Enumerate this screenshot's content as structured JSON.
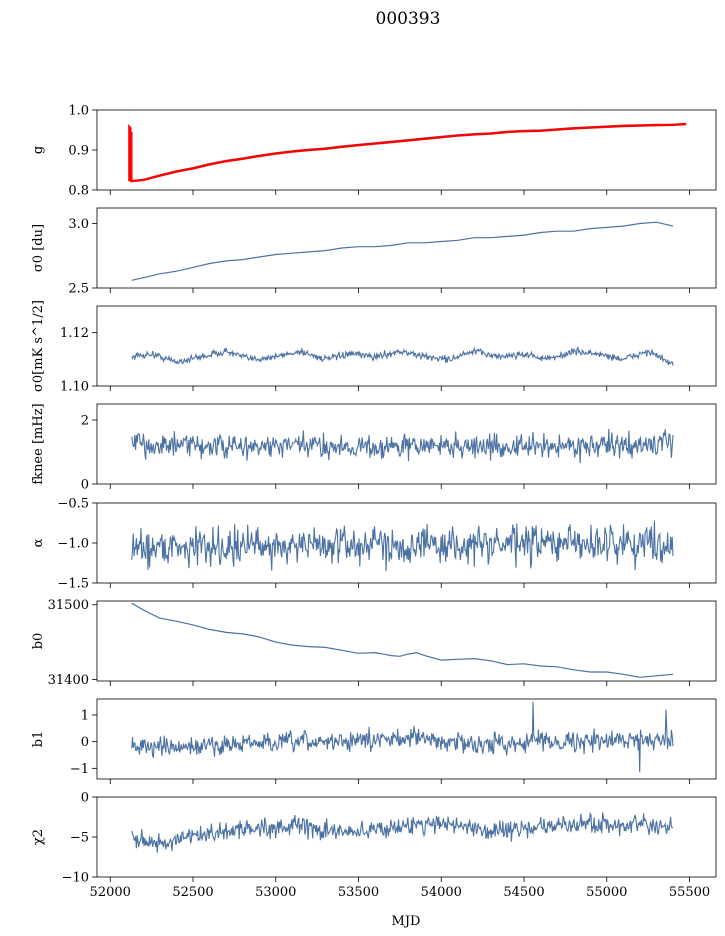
{
  "title": "000393",
  "chart_data": [
    {
      "id": "g",
      "type": "line",
      "ylabel": "g",
      "ylim": [
        0.8,
        1.0
      ],
      "yticks": [
        {
          "v": 0.8,
          "label": "0.8"
        },
        {
          "v": 0.9,
          "label": "0.9"
        },
        {
          "v": 1.0,
          "label": "1.0"
        }
      ],
      "series": [
        {
          "color": "#4c72a4",
          "kind": "smooth",
          "points": [
            [
              52120,
              0.823
            ],
            [
              52200,
              0.826
            ],
            [
              52300,
              0.838
            ],
            [
              52400,
              0.848
            ],
            [
              52500,
              0.856
            ],
            [
              52600,
              0.866
            ],
            [
              52700,
              0.874
            ],
            [
              52800,
              0.88
            ],
            [
              52900,
              0.887
            ],
            [
              53000,
              0.893
            ],
            [
              53100,
              0.898
            ],
            [
              53200,
              0.902
            ],
            [
              53300,
              0.905
            ],
            [
              53400,
              0.91
            ],
            [
              53500,
              0.914
            ],
            [
              53600,
              0.918
            ],
            [
              53700,
              0.922
            ],
            [
              53800,
              0.926
            ],
            [
              53900,
              0.93
            ],
            [
              54000,
              0.934
            ],
            [
              54100,
              0.938
            ],
            [
              54200,
              0.941
            ],
            [
              54300,
              0.943
            ],
            [
              54400,
              0.947
            ],
            [
              54500,
              0.949
            ],
            [
              54600,
              0.95
            ],
            [
              54700,
              0.953
            ],
            [
              54800,
              0.956
            ],
            [
              54900,
              0.958
            ],
            [
              55000,
              0.96
            ],
            [
              55100,
              0.962
            ],
            [
              55200,
              0.963
            ],
            [
              55300,
              0.964
            ],
            [
              55400,
              0.963
            ]
          ]
        },
        {
          "color": "#ff0000",
          "kind": "smooth-thick",
          "points": [
            [
              52120,
              0.822
            ],
            [
              52200,
              0.825
            ],
            [
              52300,
              0.836
            ],
            [
              52400,
              0.846
            ],
            [
              52500,
              0.854
            ],
            [
              52600,
              0.864
            ],
            [
              52700,
              0.872
            ],
            [
              52800,
              0.878
            ],
            [
              52900,
              0.885
            ],
            [
              53000,
              0.891
            ],
            [
              53100,
              0.896
            ],
            [
              53200,
              0.9
            ],
            [
              53300,
              0.903
            ],
            [
              53400,
              0.908
            ],
            [
              53500,
              0.912
            ],
            [
              53600,
              0.916
            ],
            [
              53700,
              0.92
            ],
            [
              53800,
              0.924
            ],
            [
              53900,
              0.928
            ],
            [
              54000,
              0.932
            ],
            [
              54100,
              0.936
            ],
            [
              54200,
              0.939
            ],
            [
              54300,
              0.941
            ],
            [
              54400,
              0.945
            ],
            [
              54500,
              0.947
            ],
            [
              54600,
              0.948
            ],
            [
              54700,
              0.951
            ],
            [
              54800,
              0.954
            ],
            [
              54900,
              0.956
            ],
            [
              55000,
              0.958
            ],
            [
              55100,
              0.96
            ],
            [
              55200,
              0.961
            ],
            [
              55300,
              0.962
            ],
            [
              55400,
              0.963
            ],
            [
              55480,
              0.965
            ]
          ]
        },
        {
          "color": "#ff0000",
          "kind": "spike",
          "points": [
            [
              52115,
              0.822
            ],
            [
              52115,
              0.958
            ],
            [
              52122,
              0.955
            ],
            [
              52122,
              0.822
            ],
            [
              52128,
              0.945
            ],
            [
              52128,
              0.822
            ]
          ]
        }
      ]
    },
    {
      "id": "sigma0_du",
      "type": "line",
      "ylabel": "σ0 [du]",
      "ylim": [
        2.5,
        3.12
      ],
      "yticks": [
        {
          "v": 2.5,
          "label": "2.5"
        },
        {
          "v": 3.0,
          "label": "3.0"
        }
      ],
      "series": [
        {
          "color": "#4c72a4",
          "kind": "smooth",
          "points": [
            [
              52130,
              2.56
            ],
            [
              52200,
              2.58
            ],
            [
              52300,
              2.61
            ],
            [
              52400,
              2.63
            ],
            [
              52500,
              2.66
            ],
            [
              52600,
              2.69
            ],
            [
              52700,
              2.71
            ],
            [
              52800,
              2.72
            ],
            [
              52900,
              2.74
            ],
            [
              53000,
              2.76
            ],
            [
              53100,
              2.77
            ],
            [
              53200,
              2.78
            ],
            [
              53300,
              2.79
            ],
            [
              53400,
              2.81
            ],
            [
              53500,
              2.82
            ],
            [
              53600,
              2.82
            ],
            [
              53700,
              2.83
            ],
            [
              53800,
              2.85
            ],
            [
              53900,
              2.85
            ],
            [
              54000,
              2.86
            ],
            [
              54100,
              2.87
            ],
            [
              54200,
              2.89
            ],
            [
              54300,
              2.89
            ],
            [
              54400,
              2.9
            ],
            [
              54500,
              2.91
            ],
            [
              54600,
              2.93
            ],
            [
              54700,
              2.94
            ],
            [
              54800,
              2.94
            ],
            [
              54900,
              2.96
            ],
            [
              55000,
              2.97
            ],
            [
              55100,
              2.98
            ],
            [
              55200,
              3.0
            ],
            [
              55300,
              3.01
            ],
            [
              55400,
              2.98
            ]
          ]
        }
      ]
    },
    {
      "id": "sigma0_mk",
      "type": "line",
      "ylabel": "σ0[mK s^1/2]",
      "ylim": [
        1.1,
        1.13
      ],
      "yticks": [
        {
          "v": 1.1,
          "label": "1.10"
        },
        {
          "v": 1.12,
          "label": "1.12"
        }
      ],
      "series": [
        {
          "color": "#4c72a4",
          "kind": "noise",
          "points": [
            [
              52130,
              1.111
            ],
            [
              52250,
              1.112
            ],
            [
              52400,
              1.109
            ],
            [
              52550,
              1.111
            ],
            [
              52700,
              1.113
            ],
            [
              52850,
              1.11
            ],
            [
              53000,
              1.111
            ],
            [
              53150,
              1.113
            ],
            [
              53300,
              1.11
            ],
            [
              53450,
              1.112
            ],
            [
              53600,
              1.111
            ],
            [
              53750,
              1.113
            ],
            [
              53900,
              1.111
            ],
            [
              54050,
              1.11
            ],
            [
              54200,
              1.113
            ],
            [
              54350,
              1.111
            ],
            [
              54500,
              1.112
            ],
            [
              54650,
              1.11
            ],
            [
              54800,
              1.113
            ],
            [
              54950,
              1.112
            ],
            [
              55100,
              1.11
            ],
            [
              55250,
              1.113
            ],
            [
              55400,
              1.108
            ]
          ],
          "noise": 0.0012
        }
      ]
    },
    {
      "id": "fknee",
      "type": "line",
      "ylabel": "fknee [mHz]",
      "ylim": [
        0,
        2.5
      ],
      "yticks": [
        {
          "v": 0,
          "label": "0"
        },
        {
          "v": 2,
          "label": "2"
        }
      ],
      "series": [
        {
          "color": "#4c72a4",
          "kind": "noise",
          "points": [
            [
              52130,
              1.25
            ],
            [
              52400,
              1.2
            ],
            [
              52800,
              1.15
            ],
            [
              53200,
              1.2
            ],
            [
              53600,
              1.15
            ],
            [
              54000,
              1.2
            ],
            [
              54400,
              1.15
            ],
            [
              54800,
              1.2
            ],
            [
              55200,
              1.2
            ],
            [
              55400,
              1.3
            ]
          ],
          "noise": 0.35
        }
      ]
    },
    {
      "id": "alpha",
      "type": "line",
      "ylabel": "α",
      "ylim": [
        -1.5,
        -0.5
      ],
      "yticks": [
        {
          "v": -1.5,
          "label": "−1.5"
        },
        {
          "v": -1.0,
          "label": "−1.0"
        },
        {
          "v": -0.5,
          "label": "−0.5"
        }
      ],
      "series": [
        {
          "color": "#4c72a4",
          "kind": "noise",
          "points": [
            [
              52130,
              -1.05
            ],
            [
              52600,
              -1.04
            ],
            [
              53100,
              -1.03
            ],
            [
              53600,
              -1.02
            ],
            [
              54100,
              -1.03
            ],
            [
              54600,
              -1.01
            ],
            [
              55100,
              -1.0
            ],
            [
              55400,
              -1.0
            ]
          ],
          "noise": 0.22
        }
      ]
    },
    {
      "id": "b0",
      "type": "line",
      "ylabel": "b0",
      "ylim": [
        31398,
        31505
      ],
      "yticks": [
        {
          "v": 31400,
          "label": "31400"
        },
        {
          "v": 31500,
          "label": "31500"
        }
      ],
      "series": [
        {
          "color": "#4c72a4",
          "kind": "smooth",
          "points": [
            [
              52130,
              31502
            ],
            [
              52200,
              31493
            ],
            [
              52300,
              31482
            ],
            [
              52400,
              31478
            ],
            [
              52500,
              31473
            ],
            [
              52600,
              31467
            ],
            [
              52700,
              31463
            ],
            [
              52800,
              31461
            ],
            [
              52900,
              31457
            ],
            [
              53000,
              31450
            ],
            [
              53100,
              31446
            ],
            [
              53200,
              31444
            ],
            [
              53300,
              31443
            ],
            [
              53400,
              31439
            ],
            [
              53500,
              31435
            ],
            [
              53600,
              31436
            ],
            [
              53700,
              31432
            ],
            [
              53750,
              31431
            ],
            [
              53800,
              31434
            ],
            [
              53850,
              31436
            ],
            [
              53900,
              31432
            ],
            [
              54000,
              31426
            ],
            [
              54100,
              31427
            ],
            [
              54200,
              31428
            ],
            [
              54300,
              31425
            ],
            [
              54400,
              31420
            ],
            [
              54500,
              31421
            ],
            [
              54600,
              31418
            ],
            [
              54700,
              31417
            ],
            [
              54800,
              31413
            ],
            [
              54900,
              31410
            ],
            [
              55000,
              31410
            ],
            [
              55100,
              31407
            ],
            [
              55200,
              31403
            ],
            [
              55300,
              31405
            ],
            [
              55400,
              31407
            ]
          ]
        }
      ]
    },
    {
      "id": "b1",
      "type": "line",
      "ylabel": "b1",
      "ylim": [
        -1.4,
        1.6
      ],
      "yticks": [
        {
          "v": -1,
          "label": "−1"
        },
        {
          "v": 0,
          "label": "0"
        },
        {
          "v": 1,
          "label": "1"
        }
      ],
      "series": [
        {
          "color": "#4c72a4",
          "kind": "noise",
          "points": [
            [
              52130,
              -0.15
            ],
            [
              52400,
              -0.25
            ],
            [
              52700,
              -0.1
            ],
            [
              53000,
              -0.05
            ],
            [
              53300,
              0.0
            ],
            [
              53600,
              0.05
            ],
            [
              53800,
              0.2
            ],
            [
              54000,
              0.0
            ],
            [
              54300,
              -0.1
            ],
            [
              54600,
              0.05
            ],
            [
              54900,
              0.0
            ],
            [
              55200,
              0.1
            ],
            [
              55400,
              0.1
            ]
          ],
          "noise": 0.35,
          "spikes": [
            [
              54555,
              1.5
            ],
            [
              55200,
              -1.15
            ],
            [
              55360,
              1.2
            ]
          ]
        }
      ]
    },
    {
      "id": "chi2",
      "type": "line",
      "ylabel": "χ2",
      "xlabel": "MJD",
      "ylim": [
        -10,
        0
      ],
      "yticks": [
        {
          "v": -10,
          "label": "−10"
        },
        {
          "v": -5,
          "label": "−5"
        },
        {
          "v": 0,
          "label": "0"
        }
      ],
      "series": [
        {
          "color": "#4c72a4",
          "kind": "noise",
          "points": [
            [
              52130,
              -4.8
            ],
            [
              52300,
              -6.0
            ],
            [
              52500,
              -5.0
            ],
            [
              52800,
              -4.0
            ],
            [
              53100,
              -3.6
            ],
            [
              53400,
              -4.5
            ],
            [
              53700,
              -3.8
            ],
            [
              54000,
              -3.2
            ],
            [
              54300,
              -4.2
            ],
            [
              54600,
              -3.8
            ],
            [
              54900,
              -3.3
            ],
            [
              55200,
              -3.6
            ],
            [
              55400,
              -4.0
            ]
          ],
          "noise": 1.1
        }
      ]
    }
  ],
  "xaxis": {
    "label": "MJD",
    "xlim": [
      51920,
      55660
    ],
    "ticks": [
      {
        "v": 52000,
        "label": "52000"
      },
      {
        "v": 52500,
        "label": "52500"
      },
      {
        "v": 53000,
        "label": "53000"
      },
      {
        "v": 53500,
        "label": "53500"
      },
      {
        "v": 54000,
        "label": "54000"
      },
      {
        "v": 54500,
        "label": "54500"
      },
      {
        "v": 55000,
        "label": "55000"
      },
      {
        "v": 55500,
        "label": "55500"
      }
    ]
  }
}
